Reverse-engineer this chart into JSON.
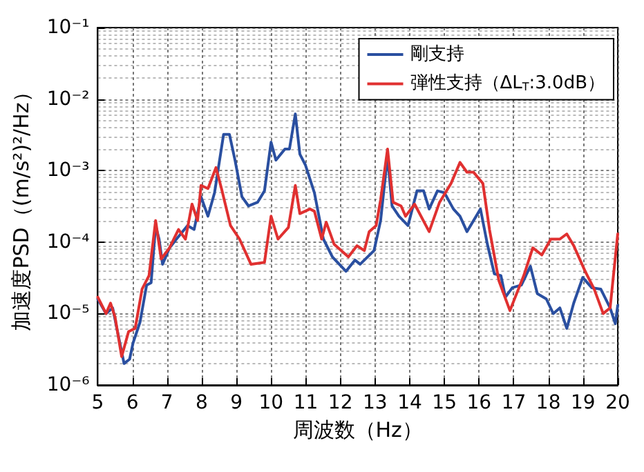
{
  "chart_data": {
    "type": "line",
    "xlabel": "周波数（Hz）",
    "ylabel": "加速度PSD（(m/s²)²/Hz）",
    "xlim": [
      5,
      20
    ],
    "xticks": [
      5,
      6,
      7,
      8,
      9,
      10,
      11,
      12,
      13,
      14,
      15,
      16,
      17,
      18,
      19,
      20
    ],
    "ylim": [
      1e-06,
      0.1
    ],
    "yticks": [
      {
        "value": 1e-06,
        "label": "10⁻⁶"
      },
      {
        "value": 1e-05,
        "label": "10⁻⁵"
      },
      {
        "value": 0.0001,
        "label": "10⁻⁴"
      },
      {
        "value": 0.001,
        "label": "10⁻³"
      },
      {
        "value": 0.01,
        "label": "10⁻²"
      },
      {
        "value": 0.1,
        "label": "10⁻¹"
      }
    ],
    "log": "y",
    "grid": true,
    "legend": "top right",
    "marker": "none",
    "line_style": "solid",
    "series": [
      {
        "name": "剛支持",
        "color": "#2a4fa0",
        "x": [
          5.0,
          5.24,
          5.43,
          5.76,
          5.92,
          6.02,
          6.22,
          6.41,
          6.54,
          6.67,
          6.77,
          6.87,
          7.07,
          7.27,
          7.59,
          7.78,
          7.98,
          8.18,
          8.37,
          8.63,
          8.8,
          8.96,
          9.16,
          9.35,
          9.61,
          9.81,
          10.0,
          10.14,
          10.4,
          10.53,
          10.7,
          10.83,
          10.99,
          11.25,
          11.51,
          11.77,
          12.16,
          12.42,
          12.57,
          12.97,
          13.16,
          13.36,
          13.49,
          13.69,
          13.95,
          14.21,
          14.4,
          14.56,
          14.8,
          15.0,
          15.26,
          15.45,
          15.65,
          16.04,
          16.24,
          16.44,
          16.63,
          16.76,
          16.96,
          17.22,
          17.48,
          17.68,
          17.94,
          18.14,
          18.33,
          18.53,
          18.73,
          18.99,
          19.25,
          19.51,
          19.78,
          19.93,
          20.0
        ],
        "values": [
          1.6e-05,
          1e-05,
          1.2e-05,
          2e-06,
          2.3e-06,
          3.9e-06,
          7.6e-06,
          2.5e-05,
          2.7e-05,
          0.00017,
          0.00011,
          4.9e-05,
          8.3e-05,
          0.00011,
          0.00017,
          0.00015,
          0.00043,
          0.00023,
          0.00049,
          0.0032,
          0.0032,
          0.0014,
          0.00043,
          0.00032,
          0.00036,
          0.00052,
          0.0025,
          0.0014,
          0.002,
          0.002,
          0.0062,
          0.0017,
          0.0012,
          0.00049,
          0.00011,
          6.2e-05,
          3.9e-05,
          5.6e-05,
          4.9e-05,
          7.6e-05,
          0.0002,
          0.0016,
          0.00032,
          0.00023,
          0.00017,
          0.00052,
          0.00052,
          0.00029,
          0.00052,
          0.00049,
          0.00029,
          0.00023,
          0.00014,
          0.00029,
          9.3e-05,
          3.6e-05,
          3.4e-05,
          1.7e-05,
          2.3e-05,
          2.5e-05,
          4.6e-05,
          1.9e-05,
          1.6e-05,
          1e-05,
          1.2e-05,
          6.2e-06,
          1.4e-05,
          3.2e-05,
          2.3e-05,
          2.2e-05,
          1.2e-05,
          7.2e-06,
          1.3e-05
        ]
      },
      {
        "name": "弾性支持（ΔL$_{T}$:3.0dB）",
        "color": "#e03030",
        "x": [
          5.0,
          5.24,
          5.37,
          5.5,
          5.69,
          5.89,
          6.08,
          6.28,
          6.48,
          6.67,
          6.83,
          7.07,
          7.33,
          7.53,
          7.72,
          7.88,
          7.98,
          8.18,
          8.41,
          8.57,
          8.83,
          9.09,
          9.42,
          9.81,
          10.0,
          10.2,
          10.5,
          10.7,
          10.83,
          11.12,
          11.25,
          11.46,
          11.59,
          11.82,
          12.23,
          12.48,
          12.69,
          12.83,
          13.03,
          13.16,
          13.36,
          13.52,
          13.75,
          13.88,
          14.14,
          14.56,
          14.86,
          15.19,
          15.45,
          15.65,
          15.84,
          16.11,
          16.3,
          16.57,
          16.89,
          17.29,
          17.55,
          17.81,
          18.07,
          18.33,
          18.53,
          18.73,
          19.06,
          19.32,
          19.58,
          19.78,
          20.0
        ],
        "values": [
          1.7e-05,
          1e-05,
          1.4e-05,
          8.9e-06,
          2.5e-06,
          5.6e-06,
          6.2e-06,
          2.2e-05,
          3.4e-05,
          0.0002,
          5.8e-05,
          8.3e-05,
          0.00015,
          0.00011,
          0.00034,
          0.0002,
          0.00062,
          0.00056,
          0.0011,
          0.00056,
          0.00017,
          0.00011,
          4.9e-05,
          5.2e-05,
          0.00023,
          0.00011,
          0.00016,
          0.00062,
          0.00025,
          0.00029,
          0.00027,
          0.00011,
          0.00019,
          9.3e-05,
          6.2e-05,
          8.9e-05,
          7.6e-05,
          0.00014,
          0.00017,
          0.00039,
          0.002,
          0.00036,
          0.00032,
          0.00023,
          0.00034,
          0.00014,
          0.00036,
          0.00066,
          0.0013,
          0.00095,
          0.00095,
          0.00066,
          0.00015,
          2.9e-05,
          1.1e-05,
          3.4e-05,
          8.3e-05,
          6.6e-05,
          0.00011,
          0.00011,
          0.00013,
          8.9e-05,
          3.9e-05,
          2.2e-05,
          1e-05,
          1.2e-05,
          0.00013
        ]
      }
    ]
  }
}
